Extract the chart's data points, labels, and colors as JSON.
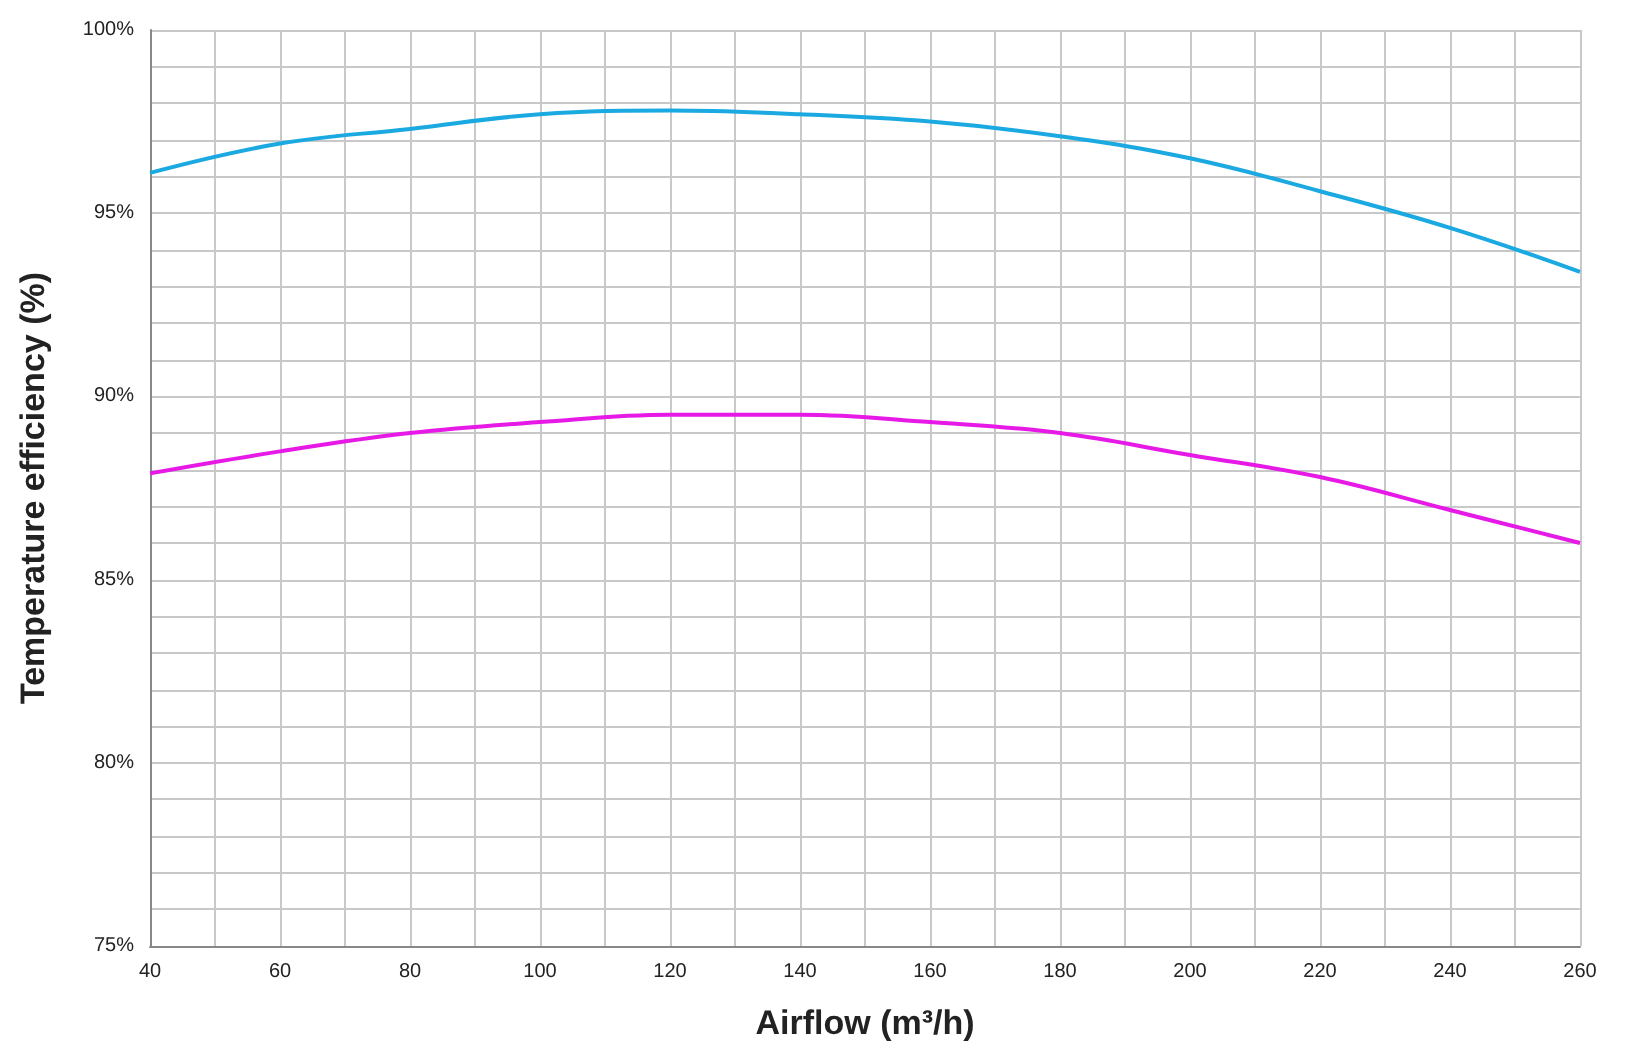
{
  "chart_data": {
    "type": "line",
    "xlabel": "Airflow (m³/h)",
    "ylabel": "Temperature efficiency (%)",
    "x": [
      40,
      60,
      80,
      100,
      120,
      140,
      160,
      180,
      200,
      220,
      240,
      260
    ],
    "series": [
      {
        "color": "#1ba9e1",
        "values": [
          96.1,
          96.9,
          97.3,
          97.7,
          97.8,
          97.7,
          97.5,
          97.1,
          96.5,
          95.6,
          94.6,
          93.4
        ]
      },
      {
        "color": "#e619e6",
        "values": [
          87.9,
          88.5,
          89.0,
          89.3,
          89.5,
          89.5,
          89.3,
          89.0,
          88.4,
          87.8,
          86.9,
          86.0
        ]
      }
    ],
    "xlim": [
      40,
      260
    ],
    "ylim": [
      75,
      100
    ],
    "xticks": [
      40,
      {
        "value": 50,
        "label": null
      },
      60,
      {
        "value": 70,
        "label": null
      },
      80,
      {
        "value": 90,
        "label": null
      },
      100,
      {
        "value": 110,
        "label": null
      },
      120,
      {
        "value": 130,
        "label": null
      },
      140,
      {
        "value": 150,
        "label": null
      },
      160,
      {
        "value": 170,
        "label": null
      },
      180,
      {
        "value": 190,
        "label": null
      },
      200,
      {
        "value": 210,
        "label": null
      },
      220,
      {
        "value": 230,
        "label": null
      },
      240,
      {
        "value": 250,
        "label": null
      },
      260
    ],
    "yticks": [
      {
        "value": 75,
        "label": "75%"
      },
      {
        "value": 76,
        "label": null
      },
      {
        "value": 77,
        "label": null
      },
      {
        "value": 78,
        "label": null
      },
      {
        "value": 79,
        "label": null
      },
      {
        "value": 80,
        "label": "80%"
      },
      {
        "value": 81,
        "label": null
      },
      {
        "value": 82,
        "label": null
      },
      {
        "value": 83,
        "label": null
      },
      {
        "value": 84,
        "label": null
      },
      {
        "value": 85,
        "label": "85%"
      },
      {
        "value": 86,
        "label": null
      },
      {
        "value": 87,
        "label": null
      },
      {
        "value": 88,
        "label": null
      },
      {
        "value": 89,
        "label": null
      },
      {
        "value": 90,
        "label": "90%"
      },
      {
        "value": 91,
        "label": null
      },
      {
        "value": 92,
        "label": null
      },
      {
        "value": 93,
        "label": null
      },
      {
        "value": 94,
        "label": null
      },
      {
        "value": 95,
        "label": "95%"
      },
      {
        "value": 96,
        "label": null
      },
      {
        "value": 97,
        "label": null
      },
      {
        "value": 98,
        "label": null
      },
      {
        "value": 99,
        "label": null
      },
      {
        "value": 100,
        "label": "100%"
      }
    ],
    "grid": true,
    "marker": "none",
    "line_style": "solid"
  }
}
